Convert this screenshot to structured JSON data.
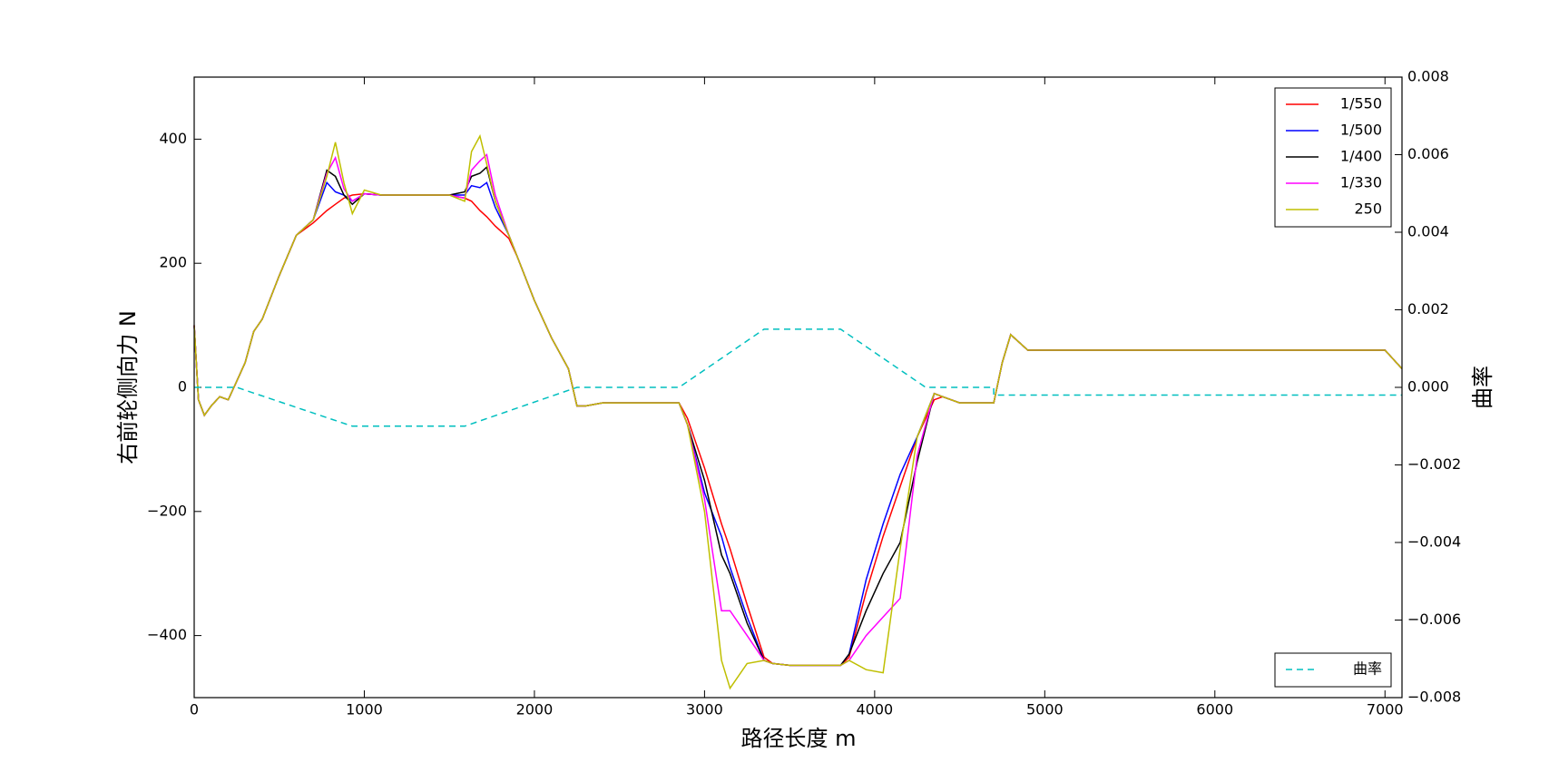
{
  "chart_data": {
    "type": "line",
    "xlabel": "路径长度 m",
    "ylabel": "右前轮侧向力 N",
    "y2label": "曲率",
    "xlim": [
      0,
      7100
    ],
    "xticks": [
      0,
      1000,
      2000,
      3000,
      4000,
      5000,
      6000,
      7000
    ],
    "ylim": [
      -500,
      500
    ],
    "yticks": [
      {
        "value": -400,
        "label": "−400"
      },
      {
        "value": -200,
        "label": "−200"
      },
      0,
      200,
      400
    ],
    "y2lim": [
      -0.008,
      0.008
    ],
    "y2ticks": [
      {
        "value": -0.008,
        "label": "−0.008"
      },
      {
        "value": -0.006,
        "label": "−0.006"
      },
      {
        "value": -0.004,
        "label": "−0.004"
      },
      {
        "value": -0.002,
        "label": "−0.002"
      },
      {
        "value": 0,
        "label": "0.000"
      },
      0.002,
      0.004,
      0.006,
      0.008
    ],
    "legend": "upper right",
    "y2_legend": "lower right",
    "x": [
      0,
      25,
      60,
      100,
      150,
      200,
      250,
      300,
      350,
      400,
      500,
      600,
      700,
      780,
      830,
      880,
      930,
      1000,
      1100,
      1300,
      1500,
      1590,
      1630,
      1680,
      1720,
      1770,
      1850,
      1900,
      2000,
      2100,
      2200,
      2250,
      2300,
      2400,
      2600,
      2850,
      2900,
      3000,
      3100,
      3150,
      3250,
      3350,
      3400,
      3500,
      3700,
      3800,
      3850,
      3950,
      4050,
      4150,
      4250,
      4350,
      4400,
      4500,
      4700,
      4750,
      4800,
      4900,
      5000,
      6000,
      7000,
      7100
    ],
    "series": [
      {
        "name": "1/550",
        "color": "#ff0000",
        "values": [
          100,
          -20,
          -45,
          -30,
          -15,
          -20,
          10,
          40,
          90,
          110,
          180,
          245,
          265,
          285,
          295,
          305,
          310,
          312,
          310,
          310,
          310,
          305,
          300,
          285,
          275,
          260,
          240,
          210,
          140,
          80,
          30,
          -30,
          -30,
          -25,
          -25,
          -25,
          -50,
          -130,
          -220,
          -260,
          -350,
          -435,
          -445,
          -448,
          -448,
          -448,
          -435,
          -330,
          -240,
          -160,
          -80,
          -20,
          -15,
          -25,
          -25,
          40,
          85,
          60,
          60,
          60,
          60,
          30
        ]
      },
      {
        "name": "1/500",
        "color": "#0000ff",
        "values": [
          100,
          -20,
          -45,
          -30,
          -15,
          -20,
          10,
          40,
          90,
          110,
          180,
          245,
          270,
          330,
          315,
          310,
          300,
          312,
          310,
          310,
          310,
          310,
          325,
          322,
          330,
          290,
          245,
          210,
          140,
          80,
          30,
          -30,
          -30,
          -25,
          -25,
          -25,
          -60,
          -170,
          -240,
          -290,
          -370,
          -440,
          -445,
          -448,
          -448,
          -448,
          -430,
          -310,
          -220,
          -140,
          -80,
          -10,
          -15,
          -25,
          -25,
          40,
          85,
          60,
          60,
          60,
          60,
          30
        ]
      },
      {
        "name": "1/400",
        "color": "#000000",
        "values": [
          100,
          -20,
          -45,
          -30,
          -15,
          -20,
          10,
          40,
          90,
          110,
          180,
          245,
          270,
          350,
          340,
          310,
          295,
          312,
          310,
          310,
          310,
          315,
          340,
          345,
          355,
          300,
          245,
          210,
          140,
          80,
          30,
          -30,
          -30,
          -25,
          -25,
          -25,
          -60,
          -150,
          -270,
          -300,
          -380,
          -440,
          -445,
          -448,
          -448,
          -448,
          -430,
          -360,
          -300,
          -250,
          -120,
          -10,
          -15,
          -25,
          -25,
          40,
          85,
          60,
          60,
          60,
          60,
          30
        ]
      },
      {
        "name": "1/330",
        "color": "#ff00ff",
        "values": [
          100,
          -20,
          -45,
          -30,
          -15,
          -20,
          10,
          40,
          90,
          110,
          180,
          245,
          270,
          345,
          370,
          320,
          300,
          312,
          310,
          310,
          310,
          305,
          350,
          365,
          375,
          310,
          245,
          210,
          140,
          80,
          30,
          -30,
          -30,
          -25,
          -25,
          -25,
          -60,
          -180,
          -360,
          -360,
          -400,
          -440,
          -445,
          -448,
          -448,
          -448,
          -440,
          -400,
          -370,
          -340,
          -110,
          -10,
          -15,
          -25,
          -25,
          40,
          85,
          60,
          60,
          60,
          60,
          30
        ]
      },
      {
        "name": "250",
        "color": "#bfbf00",
        "values": [
          100,
          -20,
          -45,
          -30,
          -15,
          -20,
          10,
          40,
          90,
          110,
          180,
          245,
          270,
          340,
          395,
          330,
          280,
          318,
          310,
          310,
          310,
          300,
          380,
          405,
          360,
          300,
          245,
          210,
          140,
          80,
          30,
          -30,
          -30,
          -25,
          -25,
          -25,
          -60,
          -200,
          -440,
          -485,
          -445,
          -440,
          -445,
          -448,
          -448,
          -448,
          -440,
          -455,
          -460,
          -260,
          -80,
          -10,
          -15,
          -25,
          -25,
          40,
          85,
          60,
          60,
          60,
          60,
          30
        ]
      },
      {
        "name": "曲率",
        "color": "#00bfbf",
        "axis": "y2",
        "linestyle": "dashed",
        "x": [
          0,
          250,
          930,
          1590,
          2250,
          2850,
          3350,
          3800,
          4300,
          4700,
          4700,
          7100
        ],
        "values": [
          0,
          0,
          -0.001,
          -0.001,
          0,
          0,
          0.0015,
          0.0015,
          0,
          0,
          -0.0002,
          -0.0002
        ]
      }
    ]
  }
}
